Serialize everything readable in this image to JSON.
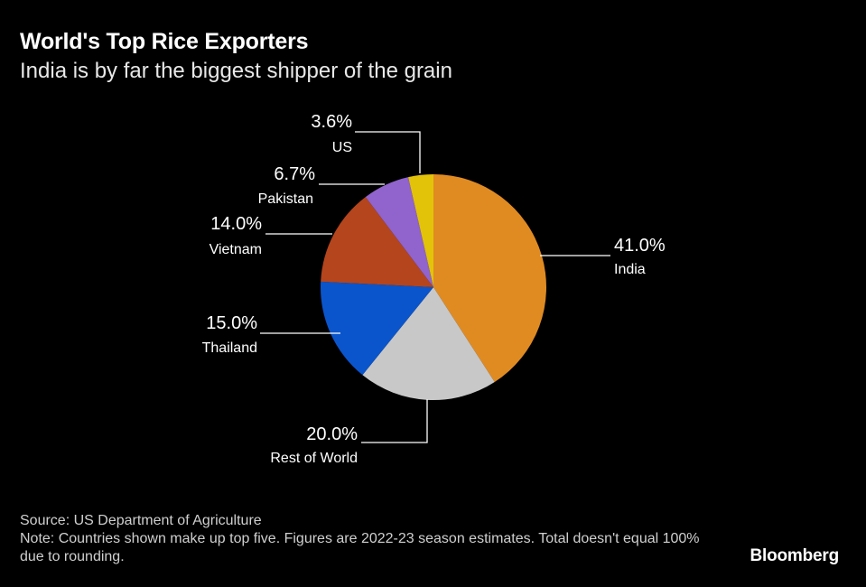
{
  "title": "World's Top Rice Exporters",
  "subtitle": "India is by far the biggest shipper of the grain",
  "chart_data": {
    "type": "pie",
    "slices": [
      {
        "label": "India",
        "value": 41.0,
        "display": "41.0%",
        "color": "#e08b22"
      },
      {
        "label": "Rest of World",
        "value": 20.0,
        "display": "20.0%",
        "color": "#c8c8c8"
      },
      {
        "label": "Thailand",
        "value": 15.0,
        "display": "15.0%",
        "color": "#0a55cc"
      },
      {
        "label": "Vietnam",
        "value": 14.0,
        "display": "14.0%",
        "color": "#b4451d"
      },
      {
        "label": "Pakistan",
        "value": 6.7,
        "display": "6.7%",
        "color": "#9063cd"
      },
      {
        "label": "US",
        "value": 3.6,
        "display": "3.6%",
        "color": "#e3c20a"
      }
    ]
  },
  "footer": {
    "source": "Source: US Department of Agriculture",
    "note": "Note: Countries shown make up top five. Figures are 2022-23 season estimates. Total doesn't equal 100% due to rounding."
  },
  "brand": "Bloomberg"
}
